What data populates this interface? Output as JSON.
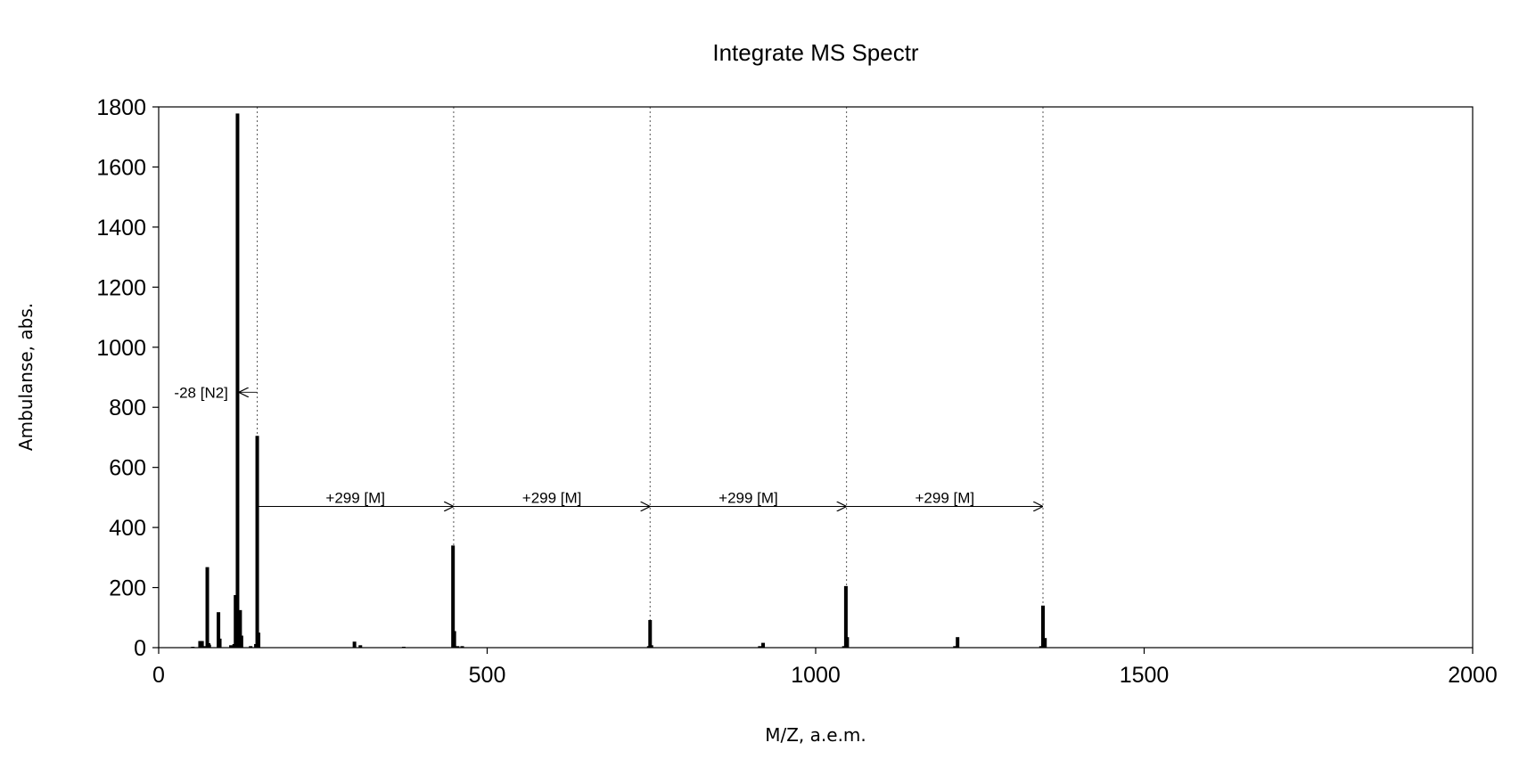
{
  "chart_data": {
    "type": "bar",
    "title": "Integrate MS Spectr",
    "xlabel": "M/Z, a.e.m.",
    "ylabel": "Ambulanse, abs.",
    "xlim": [
      0,
      2000
    ],
    "ylim": [
      0,
      1800
    ],
    "xticks": [
      0,
      500,
      1000,
      1500,
      2000
    ],
    "yticks": [
      0,
      200,
      400,
      600,
      800,
      1000,
      1200,
      1400,
      1600,
      1800
    ],
    "grid": false,
    "legend": "none",
    "bar_color": "#000000",
    "peaks": {
      "x": [
        52,
        63,
        66,
        69,
        74,
        76,
        77,
        91,
        93,
        110,
        115,
        117,
        120,
        124,
        126,
        140,
        148,
        150,
        152,
        298,
        307,
        373,
        448,
        450,
        455,
        462,
        746,
        748,
        750,
        915,
        920,
        1043,
        1046,
        1048,
        1212,
        1216,
        1343,
        1346,
        1349
      ],
      "y": [
        3,
        22,
        22,
        5,
        268,
        15,
        10,
        118,
        30,
        8,
        12,
        175,
        1778,
        125,
        40,
        5,
        12,
        705,
        50,
        20,
        8,
        3,
        340,
        55,
        5,
        5,
        5,
        92,
        8,
        5,
        16,
        5,
        205,
        35,
        5,
        35,
        5,
        140,
        32
      ]
    },
    "reference_lines_x": [
      150,
      449,
      748,
      1047,
      1346
    ],
    "annotations": [
      {
        "text": "-28 [N2]",
        "from_x": 150,
        "to_x": 122,
        "y": 850
      },
      {
        "text": "+299 [M]",
        "from_x": 150,
        "to_x": 449,
        "y": 470
      },
      {
        "text": "+299 [M]",
        "from_x": 449,
        "to_x": 748,
        "y": 470
      },
      {
        "text": "+299 [M]",
        "from_x": 748,
        "to_x": 1047,
        "y": 470
      },
      {
        "text": "+299 [M]",
        "from_x": 1047,
        "to_x": 1346,
        "y": 470
      }
    ]
  }
}
